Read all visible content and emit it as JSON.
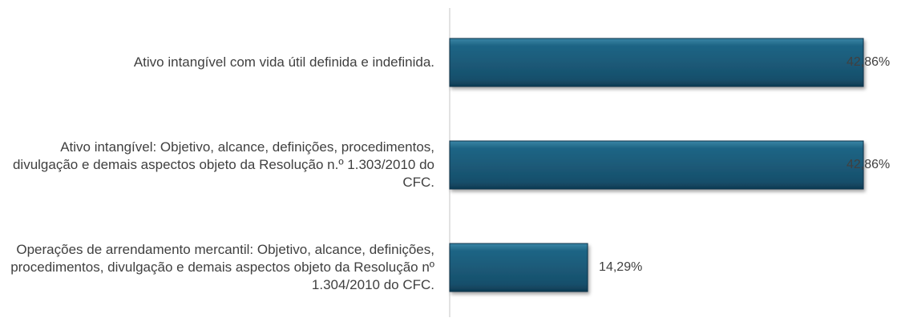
{
  "chart_data": {
    "type": "bar",
    "orientation": "horizontal",
    "categories": [
      "Ativo intangível com vida útil definida e indefinida.",
      "Ativo intangível: Objetivo, alcance, definições, procedimentos, divulgação e demais aspectos objeto da Resolução n.º 1.303/2010 do CFC.",
      "Operações de arrendamento mercantil: Objetivo, alcance, definições, procedimentos, divulgação e demais aspectos objeto da Resolução nº 1.304/2010 do CFC."
    ],
    "values": [
      42.86,
      42.86,
      14.29
    ],
    "value_labels": [
      "42,86%",
      "42,86%",
      "14,29%"
    ],
    "color": "#1b5b79"
  }
}
